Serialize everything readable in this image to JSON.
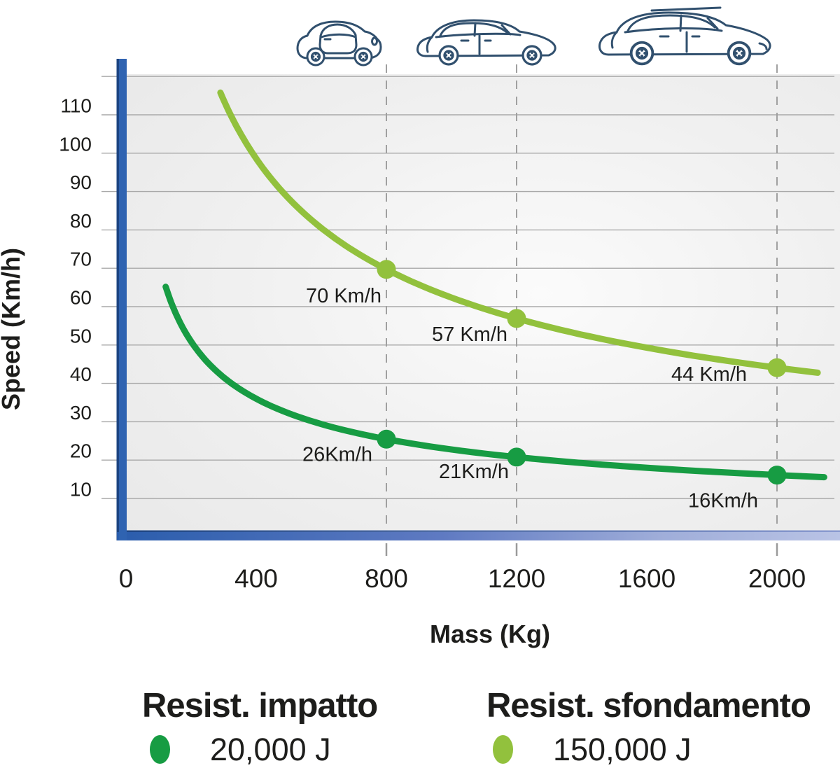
{
  "chart_data": {
    "type": "line",
    "title": "",
    "xlabel": "Mass (Kg)",
    "ylabel": "Speed (Km/h)",
    "xlim": [
      0,
      2200
    ],
    "ylim": [
      0,
      122
    ],
    "x_ticks": [
      0,
      400,
      800,
      1200,
      1600,
      2000
    ],
    "y_ticks": [
      10,
      20,
      30,
      40,
      50,
      60,
      70,
      80,
      90,
      100,
      110
    ],
    "grid": {
      "y_gridlines": [
        10,
        20,
        30,
        40,
        50,
        60,
        70,
        80,
        90,
        100,
        110,
        120
      ],
      "dashed_vertical_x": [
        800,
        1200,
        2000
      ]
    },
    "legend_position": "bottom",
    "series": [
      {
        "name": "Resist. impatto",
        "energy": "20,000 J",
        "energy_joules": 20000,
        "color": "#179c43",
        "m_start": 122,
        "m_end": 2145,
        "points": [
          {
            "mass": 800,
            "speed_kmh": 26,
            "label": "26Km/h",
            "label_dx": -20,
            "label_dy": 31
          },
          {
            "mass": 1200,
            "speed_kmh": 21,
            "label": "21Km/h",
            "label_dx": -11,
            "label_dy": 30
          },
          {
            "mass": 2000,
            "speed_kmh": 16,
            "label": "16Km/h",
            "label_dx": -27,
            "label_dy": 46
          }
        ]
      },
      {
        "name": "Resist. sfondamento",
        "energy": "150,000 J",
        "energy_joules": 150000,
        "color": "#92c13d",
        "m_start": 290,
        "m_end": 2125,
        "points": [
          {
            "mass": 800,
            "speed_kmh": 70,
            "label": "70 Km/h",
            "label_dx": -7,
            "label_dy": 47
          },
          {
            "mass": 1200,
            "speed_kmh": 57,
            "label": "57 Km/h",
            "label_dx": -13,
            "label_dy": 32
          },
          {
            "mass": 2000,
            "speed_kmh": 44,
            "label": "44 Km/h",
            "label_dx": -43,
            "label_dy": 19
          }
        ]
      }
    ]
  },
  "legend": {
    "items": [
      {
        "title": "Resist. impatto",
        "value": "20,000 J",
        "color": "#179c43"
      },
      {
        "title": "Resist. sfondamento",
        "value": "150,000 J",
        "color": "#92c13d"
      }
    ]
  },
  "icons": {
    "cars": [
      "city-car-icon",
      "hatchback-car-icon",
      "suv-car-icon"
    ]
  },
  "colors": {
    "axis_blue": "#2f63b1",
    "axis_blue_dark": "#1c4482",
    "axis_blue_light": "#b9c3e5",
    "gridline": "#a9a9a9",
    "text": "#1d1d1b",
    "car_outline": "#31506e",
    "impact_green": "#179c43",
    "breakthrough_green": "#92c13d"
  }
}
